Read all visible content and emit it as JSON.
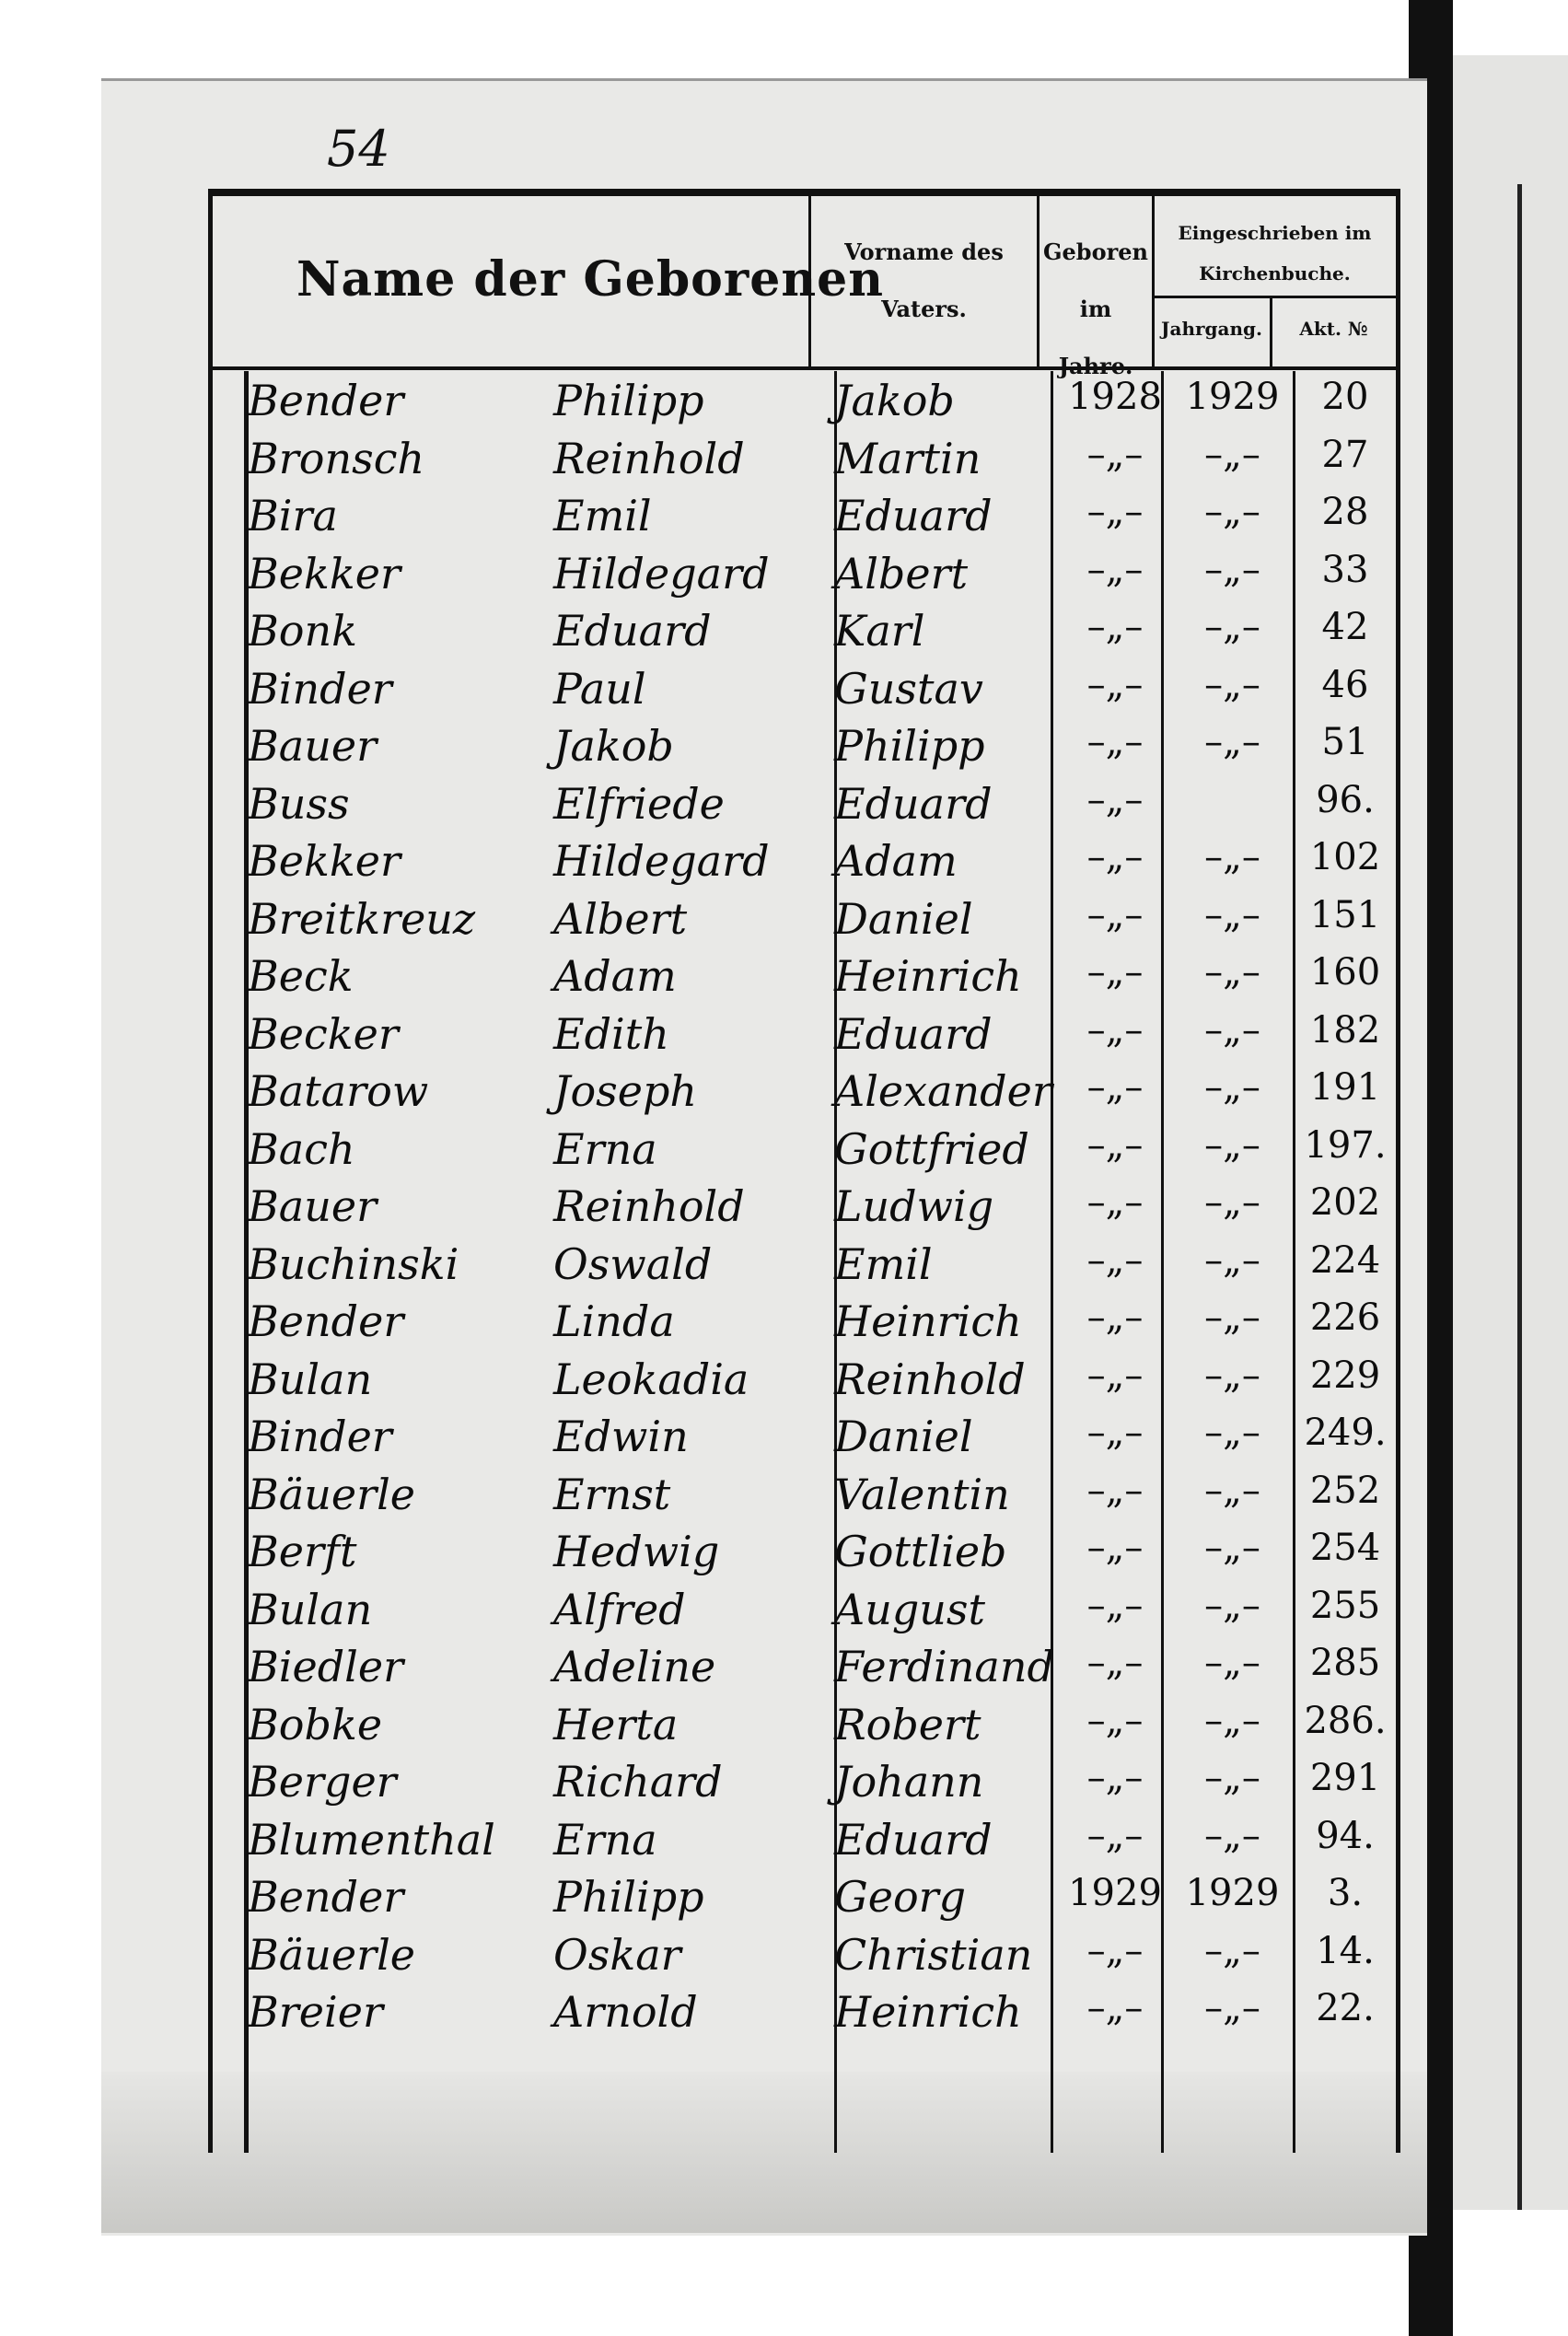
{
  "page_number": "54",
  "header": {
    "name": "Name der Geborenen",
    "father_line1": "Vorname des",
    "father_line2": "Vaters.",
    "born_line1": "Geboren",
    "born_line2": "im Jahre.",
    "church_line1": "Eingeschrieben im",
    "church_line2": "Kirchenbuche.",
    "year": "Jahrgang.",
    "akt": "Akt. №"
  },
  "rows": [
    {
      "surname": "Bender",
      "given": "Philipp",
      "father": "Jakob",
      "born": "1928",
      "year": "1929",
      "akt": "20"
    },
    {
      "surname": "Bronsch",
      "given": "Reinhold",
      "father": "Martin",
      "born": "–„–",
      "year": "–„–",
      "akt": "27"
    },
    {
      "surname": "Bira",
      "given": "Emil",
      "father": "Eduard",
      "born": "–„–",
      "year": "–„–",
      "akt": "28"
    },
    {
      "surname": "Bekker",
      "given": "Hildegard",
      "father": "Albert",
      "born": "–„–",
      "year": "–„–",
      "akt": "33"
    },
    {
      "surname": "Bonk",
      "given": "Eduard",
      "father": "Karl",
      "born": "–„–",
      "year": "–„–",
      "akt": "42"
    },
    {
      "surname": "Binder",
      "given": "Paul",
      "father": "Gustav",
      "born": "–„–",
      "year": "–„–",
      "akt": "46"
    },
    {
      "surname": "Bauer",
      "given": "Jakob",
      "father": "Philipp",
      "born": "–„–",
      "year": "–„–",
      "akt": "51"
    },
    {
      "surname": "Buss",
      "given": "Elfriede",
      "father": "Eduard",
      "born": "–„–",
      "year": "",
      "akt": "96."
    },
    {
      "surname": "Bekker",
      "given": "Hildegard",
      "father": "Adam",
      "born": "–„–",
      "year": "–„–",
      "akt": "102"
    },
    {
      "surname": "Breitkreuz",
      "given": "Albert",
      "father": "Daniel",
      "born": "–„–",
      "year": "–„–",
      "akt": "151"
    },
    {
      "surname": "Beck",
      "given": "Adam",
      "father": "Heinrich",
      "born": "–„–",
      "year": "–„–",
      "akt": "160"
    },
    {
      "surname": "Becker",
      "given": "Edith",
      "father": "Eduard",
      "born": "–„–",
      "year": "–„–",
      "akt": "182"
    },
    {
      "surname": "Batarow",
      "given": "Joseph",
      "father": "Alexander",
      "born": "–„–",
      "year": "–„–",
      "akt": "191"
    },
    {
      "surname": "Bach",
      "given": "Erna",
      "father": "Gottfried",
      "born": "–„–",
      "year": "–„–",
      "akt": "197."
    },
    {
      "surname": "Bauer",
      "given": "Reinhold",
      "father": "Ludwig",
      "born": "–„–",
      "year": "–„–",
      "akt": "202"
    },
    {
      "surname": "Buchinski",
      "given": "Oswald",
      "father": "Emil",
      "born": "–„–",
      "year": "–„–",
      "akt": "224"
    },
    {
      "surname": "Bender",
      "given": "Linda",
      "father": "Heinrich",
      "born": "–„–",
      "year": "–„–",
      "akt": "226"
    },
    {
      "surname": "Bulan",
      "given": "Leokadia",
      "father": "Reinhold",
      "born": "–„–",
      "year": "–„–",
      "akt": "229"
    },
    {
      "surname": "Binder",
      "given": "Edwin",
      "father": "Daniel",
      "born": "–„–",
      "year": "–„–",
      "akt": "249."
    },
    {
      "surname": "Bäuerle",
      "given": "Ernst",
      "father": "Valentin",
      "born": "–„–",
      "year": "–„–",
      "akt": "252"
    },
    {
      "surname": "Berft",
      "given": "Hedwig",
      "father": "Gottlieb",
      "born": "–„–",
      "year": "–„–",
      "akt": "254"
    },
    {
      "surname": "Bulan",
      "given": "Alfred",
      "father": "August",
      "born": "–„–",
      "year": "–„–",
      "akt": "255"
    },
    {
      "surname": "Biedler",
      "given": "Adeline",
      "father": "Ferdinand",
      "born": "–„–",
      "year": "–„–",
      "akt": "285"
    },
    {
      "surname": "Bobke",
      "given": "Herta",
      "father": "Robert",
      "born": "–„–",
      "year": "–„–",
      "akt": "286."
    },
    {
      "surname": "Berger",
      "given": "Richard",
      "father": "Johann",
      "born": "–„–",
      "year": "–„–",
      "akt": "291"
    },
    {
      "surname": "Blumenthal",
      "given": "Erna",
      "father": "Eduard",
      "born": "–„–",
      "year": "–„–",
      "akt": "94."
    },
    {
      "surname": "Bender",
      "given": "Philipp",
      "father": "Georg",
      "born": "1929",
      "year": "1929",
      "akt": "3."
    },
    {
      "surname": "Bäuerle",
      "given": "Oskar",
      "father": "Christian",
      "born": "–„–",
      "year": "–„–",
      "akt": "14."
    },
    {
      "surname": "Breier",
      "given": "Arnold",
      "father": "Heinrich",
      "born": "–„–",
      "year": "–„–",
      "akt": "22."
    }
  ]
}
